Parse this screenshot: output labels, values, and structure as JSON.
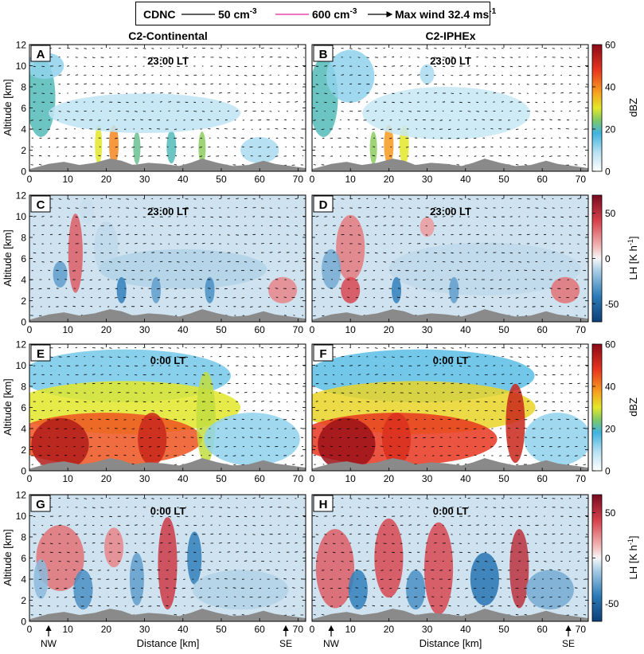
{
  "legend": {
    "title": "CDNC",
    "line1_label": "50 cm",
    "line1_exp": "-3",
    "line2_label": "600 cm",
    "line2_exp": "-3",
    "arrow_label": "Max wind 32.4 ms",
    "arrow_exp": "-1",
    "line1_color": "#000000",
    "line2_color": "#e0229c"
  },
  "columns": {
    "left": "C2-Continental",
    "right": "C2-IPHEx"
  },
  "colors": {
    "terrain": "#8a8a8a"
  },
  "colorbars": [
    {
      "row": 0,
      "label": "dBZ",
      "ticks": [
        "60",
        "40",
        "20",
        "0"
      ]
    },
    {
      "row": 1,
      "label": "LH [K h",
      "label_exp": "-1",
      "label_end": "]",
      "ticks": [
        "50",
        "0",
        "-50"
      ]
    },
    {
      "row": 2,
      "label": "dBZ",
      "ticks": [
        "60",
        "40",
        "20",
        "0"
      ]
    },
    {
      "row": 3,
      "label": "LH [K h",
      "label_exp": "-1",
      "label_end": "]",
      "ticks": [
        "50",
        "0",
        "-50"
      ]
    }
  ],
  "xaxis": {
    "label": "Distance [km]",
    "ticks": [
      "0",
      "10",
      "20",
      "30",
      "40",
      "50",
      "60",
      "70"
    ],
    "nw": "NW",
    "se": "SE"
  },
  "yaxis": {
    "label": "Altitude [km]",
    "ticks": [
      "0",
      "2",
      "4",
      "6",
      "8",
      "10",
      "12"
    ]
  },
  "chart_data": [
    {
      "panel": "A",
      "type": "heatmap",
      "variable": "Reflectivity",
      "units": "dBZ",
      "time": "23:00 LT",
      "simulation": "C2-Continental",
      "xlabel": "",
      "ylabel": "Altitude [km]",
      "xlim": [
        0,
        72
      ],
      "ylim": [
        0,
        12
      ],
      "clim": [
        0,
        60
      ],
      "max_wind_m_s": 32.4,
      "cells": [
        {
          "x": 3,
          "z": 7,
          "w": 6,
          "h": 6,
          "v": 20
        },
        {
          "x": 4,
          "z": 10,
          "w": 8,
          "h": 2,
          "v": 12
        },
        {
          "x": 18,
          "z": 2.5,
          "w": 1.5,
          "h": 3,
          "v": 30
        },
        {
          "x": 22,
          "z": 2.5,
          "w": 2,
          "h": 3,
          "v": 40
        },
        {
          "x": 28,
          "z": 2.2,
          "w": 1.5,
          "h": 2.5,
          "v": 22
        },
        {
          "x": 37,
          "z": 2.3,
          "w": 2,
          "h": 2.5,
          "v": 20
        },
        {
          "x": 45,
          "z": 2.2,
          "w": 1.5,
          "h": 2.5,
          "v": 25
        },
        {
          "x": 30,
          "z": 5.5,
          "w": 40,
          "h": 3,
          "v": 8
        },
        {
          "x": 60,
          "z": 2,
          "w": 8,
          "h": 2,
          "v": 10
        }
      ]
    },
    {
      "panel": "B",
      "type": "heatmap",
      "variable": "Reflectivity",
      "units": "dBZ",
      "time": "23:00 LT",
      "simulation": "C2-IPHEx",
      "xlabel": "",
      "ylabel": "",
      "xlim": [
        0,
        72
      ],
      "ylim": [
        0,
        12
      ],
      "clim": [
        0,
        60
      ],
      "max_wind_m_s": 32.4,
      "cells": [
        {
          "x": 3,
          "z": 7,
          "w": 6,
          "h": 6,
          "v": 20
        },
        {
          "x": 10,
          "z": 9,
          "w": 10,
          "h": 4,
          "v": 12
        },
        {
          "x": 30,
          "z": 9.2,
          "w": 3,
          "h": 1.5,
          "v": 10
        },
        {
          "x": 20,
          "z": 2.5,
          "w": 2,
          "h": 3,
          "v": 38
        },
        {
          "x": 24,
          "z": 2.5,
          "w": 2,
          "h": 3,
          "v": 30
        },
        {
          "x": 16,
          "z": 2.2,
          "w": 1.5,
          "h": 2.5,
          "v": 25
        },
        {
          "x": 35,
          "z": 5.5,
          "w": 35,
          "h": 4,
          "v": 7
        }
      ]
    },
    {
      "panel": "C",
      "type": "heatmap",
      "variable": "Latent heating",
      "units": "K h^-1",
      "time": "23:00 LT",
      "simulation": "C2-Continental",
      "xlabel": "",
      "ylabel": "Altitude [km]",
      "xlim": [
        0,
        72
      ],
      "ylim": [
        0,
        12
      ],
      "clim": [
        -70,
        70
      ],
      "max_wind_m_s": 32.4,
      "cells": [
        {
          "x": 12,
          "z": 6.5,
          "w": 3,
          "h": 6,
          "v": 35
        },
        {
          "x": 20,
          "z": 7,
          "w": 5,
          "h": 4,
          "v": -10
        },
        {
          "x": 15,
          "z": 10.5,
          "w": 3,
          "h": 2,
          "v": -8
        },
        {
          "x": 40,
          "z": 5,
          "w": 35,
          "h": 3,
          "v": -12
        },
        {
          "x": 8,
          "z": 4.5,
          "w": 3,
          "h": 2,
          "v": -30
        },
        {
          "x": 24,
          "z": 3,
          "w": 2,
          "h": 2,
          "v": -40
        },
        {
          "x": 33,
          "z": 3,
          "w": 2,
          "h": 2,
          "v": -30
        },
        {
          "x": 47,
          "z": 3,
          "w": 2,
          "h": 2,
          "v": -35
        },
        {
          "x": 66,
          "z": 3,
          "w": 6,
          "h": 2,
          "v": 25
        }
      ]
    },
    {
      "panel": "D",
      "type": "heatmap",
      "variable": "Latent heating",
      "units": "K h^-1",
      "time": "23:00 LT",
      "simulation": "C2-IPHEx",
      "xlabel": "",
      "ylabel": "",
      "xlim": [
        0,
        72
      ],
      "ylim": [
        0,
        12
      ],
      "clim": [
        -70,
        70
      ],
      "max_wind_m_s": 32.4,
      "cells": [
        {
          "x": 10,
          "z": 7,
          "w": 6,
          "h": 5,
          "v": 28
        },
        {
          "x": 10,
          "z": 3,
          "w": 4,
          "h": 2,
          "v": 40
        },
        {
          "x": 30,
          "z": 9,
          "w": 3,
          "h": 1.5,
          "v": 20
        },
        {
          "x": 5,
          "z": 5,
          "w": 4,
          "h": 3,
          "v": -25
        },
        {
          "x": 45,
          "z": 5,
          "w": 40,
          "h": 4,
          "v": -10
        },
        {
          "x": 22,
          "z": 3,
          "w": 2,
          "h": 2,
          "v": -40
        },
        {
          "x": 37,
          "z": 3,
          "w": 2,
          "h": 2,
          "v": -30
        },
        {
          "x": 66,
          "z": 3,
          "w": 6,
          "h": 2,
          "v": 30
        }
      ]
    },
    {
      "panel": "E",
      "type": "heatmap",
      "variable": "Reflectivity",
      "units": "dBZ",
      "time": "0:00 LT",
      "simulation": "C2-Continental",
      "xlabel": "",
      "ylabel": "Altitude [km]",
      "xlim": [
        0,
        72
      ],
      "ylim": [
        0,
        12
      ],
      "clim": [
        0,
        60
      ],
      "max_wind_m_s": 32.4,
      "cells": [
        {
          "x": 25,
          "z": 9,
          "w": 44,
          "h": 4,
          "v": 14
        },
        {
          "x": 25,
          "z": 6,
          "w": 48,
          "h": 4,
          "v": 30
        },
        {
          "x": 20,
          "z": 3,
          "w": 40,
          "h": 4,
          "v": 45
        },
        {
          "x": 8,
          "z": 2.5,
          "w": 12,
          "h": 4,
          "v": 55
        },
        {
          "x": 32,
          "z": 3,
          "w": 6,
          "h": 4,
          "v": 52
        },
        {
          "x": 46,
          "z": 5,
          "w": 4,
          "h": 7,
          "v": 28
        },
        {
          "x": 58,
          "z": 3,
          "w": 20,
          "h": 4,
          "v": 12
        }
      ]
    },
    {
      "panel": "F",
      "type": "heatmap",
      "variable": "Reflectivity",
      "units": "dBZ",
      "time": "0:00 LT",
      "simulation": "C2-IPHEx",
      "xlabel": "",
      "ylabel": "",
      "xlim": [
        0,
        72
      ],
      "ylim": [
        0,
        12
      ],
      "clim": [
        0,
        60
      ],
      "max_wind_m_s": 32.4,
      "cells": [
        {
          "x": 28,
          "z": 9,
          "w": 48,
          "h": 4,
          "v": 16
        },
        {
          "x": 27,
          "z": 6,
          "w": 50,
          "h": 4,
          "v": 32
        },
        {
          "x": 22,
          "z": 3,
          "w": 42,
          "h": 4,
          "v": 48
        },
        {
          "x": 9,
          "z": 2.5,
          "w": 12,
          "h": 4,
          "v": 58
        },
        {
          "x": 22,
          "z": 3,
          "w": 6,
          "h": 4,
          "v": 50
        },
        {
          "x": 53,
          "z": 4.5,
          "w": 4,
          "h": 6,
          "v": 52
        },
        {
          "x": 64,
          "z": 3,
          "w": 14,
          "h": 4,
          "v": 12
        }
      ]
    },
    {
      "panel": "G",
      "type": "heatmap",
      "variable": "Latent heating",
      "units": "K h^-1",
      "time": "0:00 LT",
      "simulation": "C2-Continental",
      "xlabel": "Distance [km]",
      "ylabel": "Altitude [km]",
      "xlim": [
        0,
        72
      ],
      "ylim": [
        0,
        12
      ],
      "clim": [
        -70,
        70
      ],
      "max_wind_m_s": 32.4,
      "cells": [
        {
          "x": 8,
          "z": 6,
          "w": 10,
          "h": 5,
          "v": 30
        },
        {
          "x": 36,
          "z": 5.5,
          "w": 4,
          "h": 7,
          "v": 45
        },
        {
          "x": 22,
          "z": 7,
          "w": 4,
          "h": 3,
          "v": 25
        },
        {
          "x": 3,
          "z": 4,
          "w": 3,
          "h": 3,
          "v": -20
        },
        {
          "x": 14,
          "z": 3,
          "w": 4,
          "h": 3,
          "v": -35
        },
        {
          "x": 28,
          "z": 4,
          "w": 3,
          "h": 4,
          "v": -30
        },
        {
          "x": 43,
          "z": 6,
          "w": 3,
          "h": 4,
          "v": -40
        },
        {
          "x": 55,
          "z": 3,
          "w": 20,
          "h": 3,
          "v": -12
        }
      ]
    },
    {
      "panel": "H",
      "type": "heatmap",
      "variable": "Latent heating",
      "units": "K h^-1",
      "time": "0:00 LT",
      "simulation": "C2-IPHEx",
      "xlabel": "Distance [km]",
      "ylabel": "",
      "xlim": [
        0,
        72
      ],
      "ylim": [
        0,
        12
      ],
      "clim": [
        -70,
        70
      ],
      "max_wind_m_s": 32.4,
      "cells": [
        {
          "x": 6,
          "z": 5,
          "w": 8,
          "h": 6,
          "v": 35
        },
        {
          "x": 20,
          "z": 6,
          "w": 6,
          "h": 6,
          "v": 40
        },
        {
          "x": 33,
          "z": 5,
          "w": 6,
          "h": 7,
          "v": 40
        },
        {
          "x": 54,
          "z": 5,
          "w": 4,
          "h": 6,
          "v": 50
        },
        {
          "x": 12,
          "z": 3,
          "w": 4,
          "h": 3,
          "v": -40
        },
        {
          "x": 27,
          "z": 3,
          "w": 4,
          "h": 3,
          "v": -35
        },
        {
          "x": 45,
          "z": 4,
          "w": 6,
          "h": 4,
          "v": -45
        },
        {
          "x": 62,
          "z": 3,
          "w": 10,
          "h": 3,
          "v": -25
        }
      ]
    }
  ]
}
